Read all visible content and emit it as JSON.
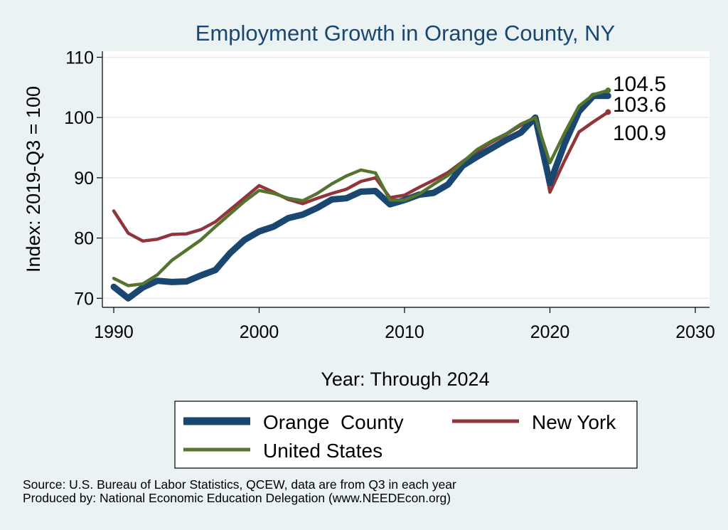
{
  "chart_data": {
    "type": "line",
    "title": "Employment Growth in Orange County, NY",
    "xlabel": "Year: Through 2024",
    "ylabel": "Index: 2019-Q3 = 100",
    "xlim": [
      1990,
      2030
    ],
    "ylim": [
      68.5,
      111
    ],
    "xticks": [
      1990,
      2000,
      2010,
      2020,
      2030
    ],
    "yticks": [
      70,
      80,
      90,
      100,
      110
    ],
    "grid": true,
    "legend_position": "bottom",
    "x": [
      1990,
      1991,
      1992,
      1993,
      1994,
      1995,
      1996,
      1997,
      1998,
      1999,
      2000,
      2001,
      2002,
      2003,
      2004,
      2005,
      2006,
      2007,
      2008,
      2009,
      2010,
      2011,
      2012,
      2013,
      2014,
      2015,
      2016,
      2017,
      2018,
      2019,
      2020,
      2021,
      2022,
      2023,
      2024
    ],
    "series": [
      {
        "name": "Orange  County",
        "color": "#1a476f",
        "values": [
          71.9,
          70.0,
          71.8,
          72.9,
          72.7,
          72.8,
          73.8,
          74.7,
          77.5,
          79.7,
          81.1,
          81.9,
          83.3,
          83.9,
          85.0,
          86.4,
          86.6,
          87.7,
          87.8,
          85.6,
          86.3,
          87.2,
          87.5,
          88.9,
          92.0,
          93.5,
          94.9,
          96.3,
          97.5,
          100.0,
          89.1,
          95.6,
          101.0,
          103.6,
          103.6
        ]
      },
      {
        "name": "New York",
        "color": "#90353b",
        "values": [
          84.5,
          80.8,
          79.5,
          79.8,
          80.6,
          80.7,
          81.4,
          82.7,
          84.7,
          86.7,
          88.7,
          87.6,
          86.4,
          85.7,
          86.6,
          87.4,
          88.1,
          89.4,
          90.0,
          86.7,
          87.1,
          88.4,
          89.6,
          90.9,
          92.7,
          94.4,
          95.9,
          97.2,
          98.7,
          100.0,
          87.6,
          92.8,
          97.6,
          99.3,
          100.9
        ]
      },
      {
        "name": "United States",
        "color": "#55752f",
        "values": [
          73.3,
          72.1,
          72.4,
          73.9,
          76.3,
          78.0,
          79.7,
          81.9,
          84.0,
          86.1,
          87.9,
          87.4,
          86.6,
          86.2,
          87.4,
          89.0,
          90.3,
          91.3,
          90.8,
          86.3,
          86.3,
          87.3,
          88.9,
          90.4,
          92.6,
          94.7,
          96.1,
          97.3,
          98.9,
          100.0,
          92.5,
          97.4,
          101.9,
          103.8,
          104.5
        ]
      }
    ],
    "end_labels": [
      {
        "text": "104.5",
        "value": 104.5,
        "color": "#55752f"
      },
      {
        "text": "103.6",
        "value": 103.6,
        "color": "#1a476f"
      },
      {
        "text": "100.9",
        "value": 100.9,
        "color": "#90353b"
      }
    ]
  },
  "legend": {
    "items": [
      {
        "label": "Orange  County",
        "color": "#1a476f"
      },
      {
        "label": "New York",
        "color": "#90353b"
      },
      {
        "label": "United States",
        "color": "#55752f"
      }
    ]
  },
  "source": {
    "line1": "Source: U.S. Bureau of Labor Statistics, QCEW, data are from Q3 in each year",
    "line2": "Produced by: National Economic Education Delegation (www.NEEDEcon.org)"
  }
}
